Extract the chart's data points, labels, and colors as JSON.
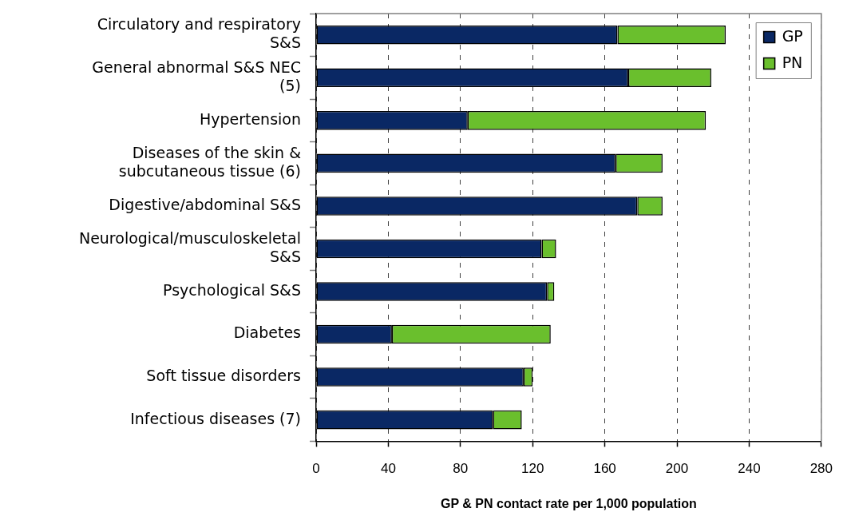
{
  "chart_data": {
    "type": "bar",
    "orientation": "horizontal",
    "stacked": true,
    "categories": [
      "Circulatory and respiratory S&S",
      "General abnormal S&S NEC (5)",
      "Hypertension",
      "Diseases of the skin & subcutaneous tissue (6)",
      "Digestive/abdominal S&S",
      "Neurological/musculoskeletal S&S",
      "Psychological S&S",
      "Diabetes",
      "Soft tissue disorders",
      "Infectious diseases (7)"
    ],
    "series": [
      {
        "name": "GP",
        "color": "#0a2864",
        "values": [
          167,
          173,
          84,
          166,
          178,
          125,
          128,
          42,
          115,
          98
        ]
      },
      {
        "name": "PN",
        "color": "#6abf2d",
        "values": [
          60,
          46,
          132,
          26,
          14,
          8,
          4,
          88,
          5,
          16
        ]
      }
    ],
    "xlim": [
      0,
      280
    ],
    "xticks": [
      0,
      40,
      80,
      120,
      160,
      200,
      240,
      280
    ],
    "xlabel": "GP & PN contact rate per 1,000 population",
    "grid": "x",
    "legend": "top right"
  }
}
